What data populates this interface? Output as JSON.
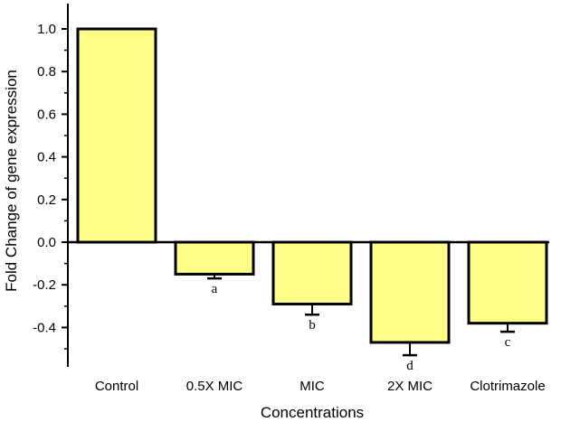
{
  "chart_data": {
    "type": "bar",
    "xlabel": "Concentrations",
    "ylabel": "Fold Change of gene expression",
    "categories": [
      "Control",
      "0.5X MIC",
      "MIC",
      "2X MIC",
      "Clotrimazole"
    ],
    "values": [
      1.0,
      -0.15,
      -0.29,
      -0.47,
      -0.38
    ],
    "errors": [
      0.0,
      0.02,
      0.05,
      0.06,
      0.04
    ],
    "significance_labels": [
      "",
      "a",
      "b",
      "d",
      "c"
    ],
    "ylim": [
      -0.56,
      1.1
    ],
    "yticks": [
      -0.4,
      -0.2,
      0.0,
      0.2,
      0.4,
      0.6,
      0.8,
      1.0
    ],
    "ytick_labels": [
      "-0.4",
      "-0.2",
      "0.0",
      "0.2",
      "0.4",
      "0.6",
      "0.8",
      "1.0"
    ],
    "bar_color": "#ffff88",
    "bar_edge_color": "#000000",
    "grid": false,
    "legend": "none"
  }
}
